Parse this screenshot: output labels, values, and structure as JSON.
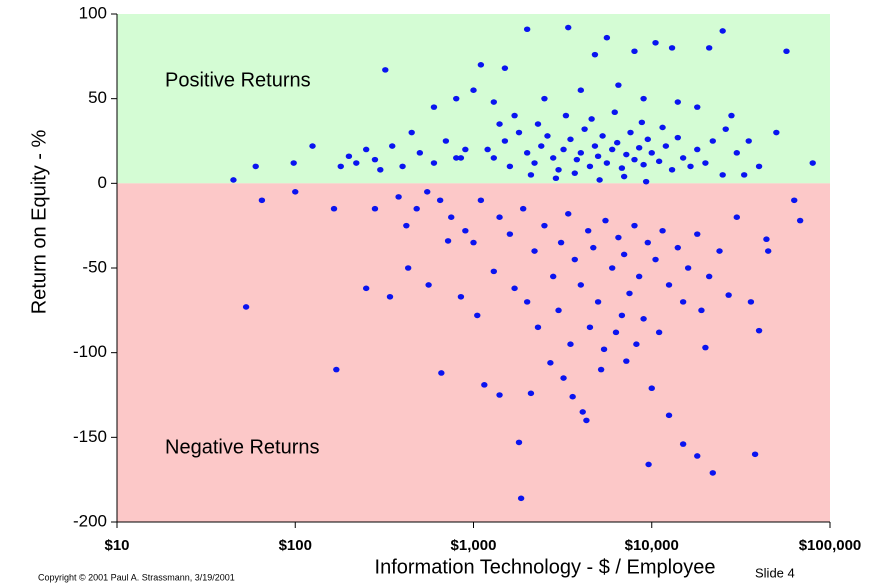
{
  "chart_data": {
    "type": "scatter",
    "y_label": "Return on Equity - %",
    "x_label": "Information Technology - $ / Employee",
    "annotations": [
      "Positive Returns",
      "Negative  Returns"
    ],
    "footer": "Copyright © 2001 Paul A. Strassmann,  3/19/2001",
    "slide": "Slide 4",
    "log_x": true,
    "color": "#0a14f0",
    "xlim": [
      10,
      100000
    ],
    "xticks": [
      {
        "value": 10,
        "label": "$10"
      },
      {
        "value": 100,
        "label": "$100"
      },
      {
        "value": 1000,
        "label": "$1,000"
      },
      {
        "value": 10000,
        "label": "$10,000"
      },
      {
        "value": 100000,
        "label": "$100,000"
      }
    ],
    "ylim": [
      -200,
      100
    ],
    "yticks": [
      -200,
      -150,
      -100,
      -50,
      0,
      50,
      100
    ],
    "x": [
      45,
      60,
      65,
      53,
      100,
      98,
      125,
      170,
      165,
      250,
      340,
      320,
      280,
      430,
      560,
      660,
      720,
      850,
      850,
      1050,
      1150,
      1400,
      1800,
      1850,
      2100,
      2700,
      3200,
      3600,
      4100,
      4300,
      5400,
      6300,
      7200,
      9600,
      10000,
      12500,
      15000,
      18000,
      22000,
      38000,
      20000,
      40000,
      44000,
      27000,
      36000,
      63000,
      68000,
      80000,
      57000,
      25000,
      2000,
      3400,
      5600,
      10500,
      8000,
      13000,
      21000,
      4800,
      1500,
      1100,
      1200,
      1300,
      1500,
      1600,
      1800,
      2000,
      2200,
      2400,
      2600,
      2800,
      3000,
      3200,
      3500,
      3800,
      4000,
      4200,
      4500,
      4800,
      5000,
      5300,
      5600,
      6000,
      6400,
      6800,
      7200,
      7600,
      8000,
      8500,
      9000,
      9500,
      10000,
      11000,
      12000,
      13000,
      14000,
      15000,
      16500,
      18000,
      20000,
      22000,
      25000,
      2300,
      3300,
      4600,
      6200,
      8800,
      11500,
      2100,
      2900,
      3700,
      5100,
      7000,
      9300,
      1700,
      1400,
      900,
      800,
      700,
      600,
      500,
      450,
      400,
      350,
      300,
      280,
      250,
      220,
      200,
      180,
      600,
      800,
      1000,
      1300,
      2500,
      4000,
      6500,
      9000,
      14000,
      18000,
      28000,
      35000,
      40000,
      30000,
      50000,
      26000,
      33000,
      1100,
      1400,
      1600,
      1900,
      2200,
      2500,
      2800,
      3100,
      3400,
      3700,
      4000,
      4400,
      4700,
      5000,
      5500,
      6000,
      6500,
      7000,
      7500,
      8000,
      8500,
      9000,
      9500,
      10500,
      11500,
      12500,
      14000,
      16000,
      18000,
      21000,
      24000,
      1000,
      900,
      750,
      650,
      550,
      480,
      420,
      380,
      1300,
      1700,
      2000,
      2300,
      3000,
      3500,
      4500,
      5200,
      6800,
      8200,
      11000,
      15000,
      19000,
      30000,
      45000
    ],
    "values": [
      2,
      10,
      -10,
      -73,
      -5,
      12,
      22,
      -110,
      -15,
      -62,
      -67,
      67,
      -15,
      -50,
      -60,
      -112,
      -34,
      -67,
      15,
      -78,
      -119,
      -125,
      -153,
      -186,
      -124,
      -106,
      -115,
      -126,
      -135,
      -140,
      -98,
      -88,
      -105,
      -166,
      -121,
      -137,
      -154,
      -161,
      -171,
      -160,
      -97,
      -87,
      -33,
      -66,
      -70,
      -10,
      -22,
      12,
      78,
      90,
      91,
      92,
      86,
      83,
      78,
      80,
      80,
      76,
      68,
      70,
      20,
      15,
      25,
      10,
      30,
      18,
      12,
      22,
      28,
      15,
      8,
      20,
      26,
      14,
      18,
      32,
      10,
      22,
      16,
      28,
      12,
      20,
      24,
      9,
      17,
      30,
      14,
      21,
      11,
      26,
      18,
      13,
      22,
      8,
      27,
      15,
      10,
      20,
      12,
      25,
      5,
      35,
      40,
      38,
      42,
      36,
      33,
      5,
      3,
      6,
      2,
      4,
      1,
      40,
      35,
      20,
      15,
      25,
      12,
      18,
      30,
      10,
      22,
      8,
      14,
      20,
      12,
      16,
      10,
      45,
      50,
      55,
      48,
      50,
      55,
      58,
      50,
      48,
      45,
      40,
      25,
      10,
      18,
      30,
      32,
      5,
      -10,
      -20,
      -30,
      -15,
      -40,
      -25,
      -55,
      -35,
      -18,
      -45,
      -60,
      -28,
      -38,
      -70,
      -22,
      -50,
      -32,
      -42,
      -65,
      -25,
      -55,
      -80,
      -35,
      -45,
      -28,
      -60,
      -38,
      -50,
      -30,
      -55,
      -40,
      -35,
      -28,
      -20,
      -10,
      -5,
      -15,
      -25,
      -8,
      -52,
      -62,
      -70,
      -85,
      -75,
      -95,
      -85,
      -110,
      -78,
      -95,
      -88,
      -70,
      -75,
      -20,
      -40
    ]
  }
}
